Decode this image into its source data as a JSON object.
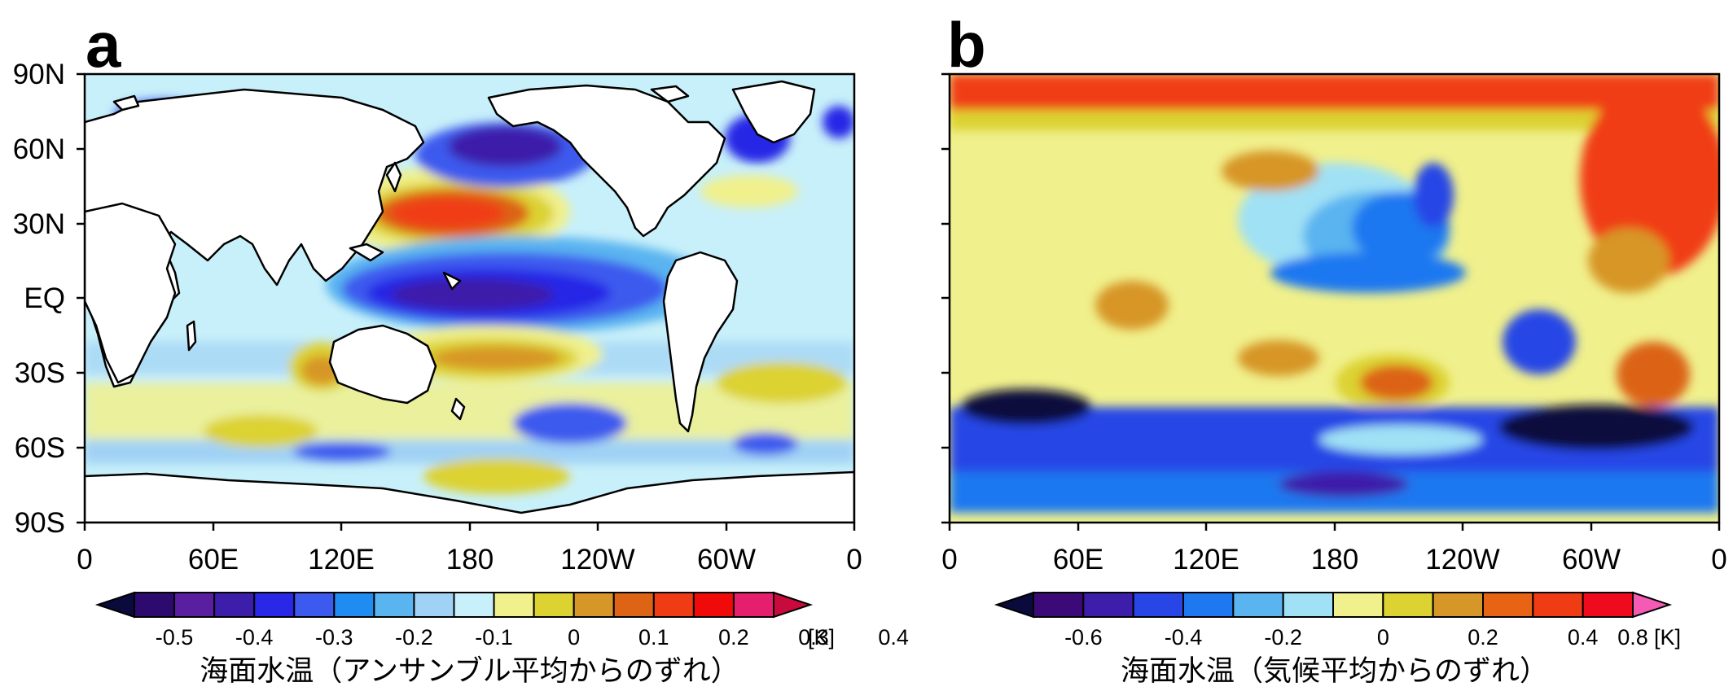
{
  "panels": [
    {
      "label": "a",
      "lat_labels": [
        "90N",
        "60N",
        "30N",
        "EQ",
        "30S",
        "60S",
        "90S"
      ],
      "lon_labels": [
        "0",
        "60E",
        "120E",
        "180",
        "120W",
        "60W",
        "0"
      ],
      "colorbar_ticks": [
        "-0.5",
        "-0.4",
        "-0.3",
        "-0.2",
        "-0.1",
        "0",
        "0.1",
        "0.2",
        "0.3",
        "0.4"
      ],
      "colorbar_unit": "[K]",
      "colorbar_title": "海面水温（アンサンブル平均からのずれ）",
      "colorbar_colors": [
        "#0a0a3c",
        "#2c0a6e",
        "#5a1ea0",
        "#3c1eaa",
        "#2828e6",
        "#3c5aee",
        "#1e8cf0",
        "#5ab4f0",
        "#a0d2f5",
        "#c8f0fa",
        "#f0f08c",
        "#dcd232",
        "#d79628",
        "#dc6414",
        "#f03c14",
        "#f00a0a",
        "#e61e6e",
        "#c80a3c"
      ]
    },
    {
      "label": "b",
      "colorbar_ticks": [
        "-0.6",
        "-0.4",
        "-0.2",
        "0",
        "0.2",
        "0.4",
        "0.8"
      ],
      "colorbar_unit": "[K]",
      "colorbar_title": "海面水温（気候平均からのずれ）",
      "colorbar_colors": [
        "#0a0a3c",
        "#3c0a78",
        "#3c1eaa",
        "#2846e6",
        "#1e78f0",
        "#5ab4f0",
        "#a0e1f5",
        "#f0f08c",
        "#dcd232",
        "#d79628",
        "#e66414",
        "#f03c14",
        "#f00a1e",
        "#f55ab4"
      ]
    }
  ]
}
